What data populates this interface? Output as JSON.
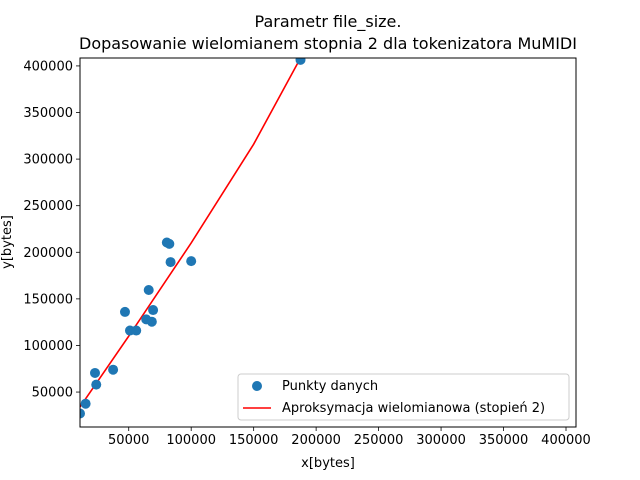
{
  "chart_data": {
    "type": "scatter",
    "title_line1": "Parametr file_size.",
    "title_line2": "Dopasowanie wielomianem stopnia 2 dla tokenizatora MuMIDI",
    "xlabel": "x[bytes]",
    "ylabel": "y[bytes]",
    "xlim": [
      11000,
      408000
    ],
    "ylim": [
      12500,
      408500
    ],
    "xticks": [
      {
        "value": 50000,
        "label": "50000"
      },
      {
        "value": 100000,
        "label": "100000"
      },
      {
        "value": 150000,
        "label": "150000"
      },
      {
        "value": 200000,
        "label": "200000"
      },
      {
        "value": 250000,
        "label": "250000"
      },
      {
        "value": 300000,
        "label": "300000"
      },
      {
        "value": 350000,
        "label": "350000"
      },
      {
        "value": 400000,
        "label": "400000"
      }
    ],
    "yticks": [
      {
        "value": 50000,
        "label": "50000"
      },
      {
        "value": 100000,
        "label": "100000"
      },
      {
        "value": 150000,
        "label": "150000"
      },
      {
        "value": 200000,
        "label": "200000"
      },
      {
        "value": 250000,
        "label": "250000"
      },
      {
        "value": 300000,
        "label": "300000"
      },
      {
        "value": 350000,
        "label": "350000"
      },
      {
        "value": 400000,
        "label": "400000"
      }
    ],
    "grid": false,
    "legend_position": "bottom-right",
    "series": [
      {
        "name": "Punkty danych",
        "kind": "scatter",
        "color": "#1f77b4",
        "points": [
          {
            "x": 11000,
            "y": 27000
          },
          {
            "x": 15500,
            "y": 37500
          },
          {
            "x": 23000,
            "y": 70500
          },
          {
            "x": 24000,
            "y": 58000
          },
          {
            "x": 37500,
            "y": 74000
          },
          {
            "x": 47000,
            "y": 136000
          },
          {
            "x": 51000,
            "y": 116000
          },
          {
            "x": 56000,
            "y": 116000
          },
          {
            "x": 64000,
            "y": 128000
          },
          {
            "x": 66000,
            "y": 159500
          },
          {
            "x": 68500,
            "y": 125500
          },
          {
            "x": 69500,
            "y": 138000
          },
          {
            "x": 80500,
            "y": 210500
          },
          {
            "x": 82500,
            "y": 209000
          },
          {
            "x": 83500,
            "y": 189500
          },
          {
            "x": 100000,
            "y": 190500
          },
          {
            "x": 187500,
            "y": 406500
          }
        ]
      },
      {
        "name": "Aproksymacja wielomianowa (stopień 2)",
        "kind": "line",
        "color": "#ff0000",
        "points": [
          {
            "x": 11000,
            "y": 34000
          },
          {
            "x": 50000,
            "y": 110000
          },
          {
            "x": 100000,
            "y": 210000
          },
          {
            "x": 150000,
            "y": 316000
          },
          {
            "x": 187500,
            "y": 408500
          }
        ]
      }
    ]
  }
}
